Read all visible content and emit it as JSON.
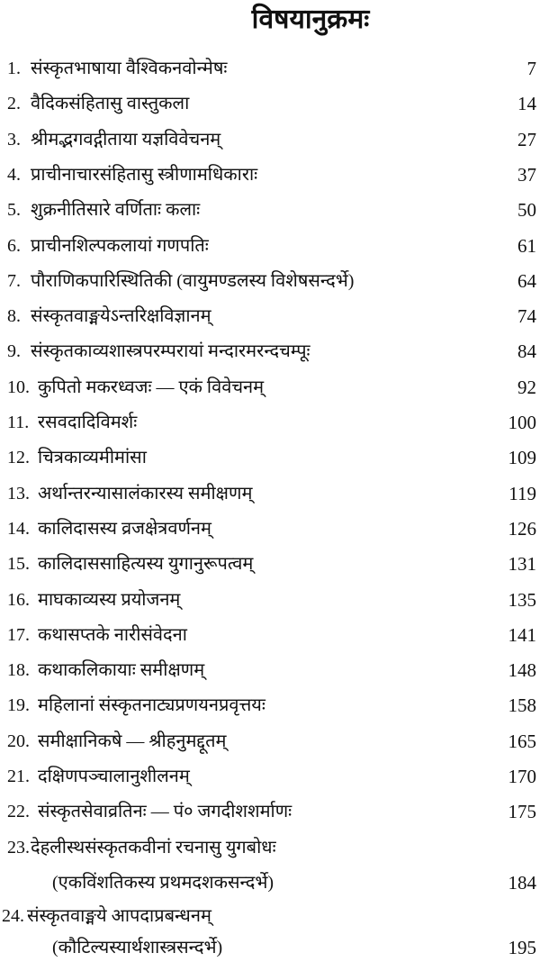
{
  "title": "विषयानुक्रमः",
  "entries": [
    {
      "num": "1.",
      "label": "संस्कृतभाषाया वैश्विकनवोन्मेषः",
      "page": "7"
    },
    {
      "num": "2.",
      "label": "वैदिकसंहितासु वास्तुकला",
      "page": "14"
    },
    {
      "num": "3.",
      "label": "श्रीमद्भगवद्गीताया यज्ञविवेचनम्",
      "page": "27"
    },
    {
      "num": "4.",
      "label": "प्राचीनाचारसंहितासु स्त्रीणामधिकाराः",
      "page": "37"
    },
    {
      "num": "5.",
      "label": "शुक्रनीतिसारे वर्णिताः कलाः",
      "page": "50"
    },
    {
      "num": "6.",
      "label": "प्राचीनशिल्पकलायां गणपतिः",
      "page": "61"
    },
    {
      "num": "7.",
      "label": "पौराणिकपारिस्थितिकी (वायुमण्डलस्य विशेषसन्दर्भे)",
      "page": "64"
    },
    {
      "num": "8.",
      "label": "संस्कृतवाङ्मयेऽन्तरिक्षविज्ञानम्",
      "page": "74"
    },
    {
      "num": "9.",
      "label": "संस्कृतकाव्यशास्त्रपरम्परायां मन्दारमरन्दचम्पूः",
      "page": "84"
    },
    {
      "num": "10.",
      "label": "कुपितो मकरध्वजः — एकं विवेचनम्",
      "page": "92"
    },
    {
      "num": "11.",
      "label": "रसवदादिविमर्शः",
      "page": "100"
    },
    {
      "num": "12.",
      "label": "चित्रकाव्यमीमांसा",
      "page": "109"
    },
    {
      "num": "13.",
      "label": "अर्थान्तरन्यासालंकारस्य समीक्षणम्",
      "page": "119"
    },
    {
      "num": "14.",
      "label": "कालिदासस्य व्रजक्षेत्रवर्णनम्",
      "page": "126"
    },
    {
      "num": "15.",
      "label": "कालिदाससाहित्यस्य युगानुरूपत्वम्",
      "page": "131"
    },
    {
      "num": "16.",
      "label": "माघकाव्यस्य प्रयोजनम्",
      "page": "135"
    },
    {
      "num": "17.",
      "label": "कथासप्तके नारीसंवेदना",
      "page": "141"
    },
    {
      "num": "18.",
      "label": "कथाकलिकायाः समीक्षणम्",
      "page": "148"
    },
    {
      "num": "19.",
      "label": "महिलानां संस्कृतनाट्यप्रणयनप्रवृत्तयः",
      "page": "158"
    },
    {
      "num": "20.",
      "label": "समीक्षानिकषे — श्रीहनुमद्दूतम्",
      "page": "165"
    },
    {
      "num": "21.",
      "label": "दक्षिणपञ्चालानुशीलनम्",
      "page": "170"
    },
    {
      "num": "22.",
      "label": "संस्कृतसेवाव्रतिनः — पं० जगदीशशर्माणः",
      "page": "175"
    }
  ],
  "entry23": {
    "num": "23.",
    "label": "देहलीस्थसंस्कृतकवीनां रचनासु युगबोधः",
    "sub": "(एकविंशतिकस्य प्रथमदशकसन्दर्भे)",
    "page": "184"
  },
  "entry24": {
    "num": "24.",
    "label": "संस्कृतवाङ्मये आपदाप्रबन्धनम्",
    "sub": "(कौटिल्यस्यार्थशास्त्रसन्दर्भे)",
    "page": "195"
  }
}
